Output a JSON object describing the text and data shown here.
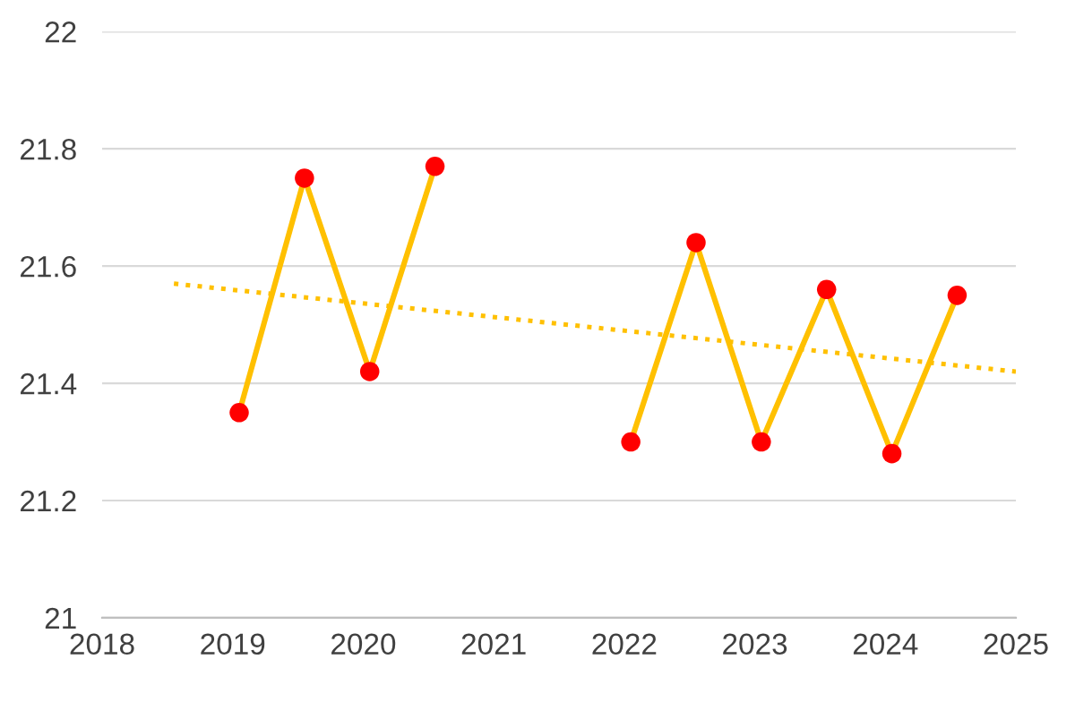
{
  "chart_data": {
    "type": "line",
    "x": [
      2019.05,
      2019.55,
      2020.05,
      2020.55,
      2021.3,
      2022.05,
      2022.55,
      2023.05,
      2023.55,
      2024.05,
      2024.55
    ],
    "series": [
      {
        "color": "#ffc000",
        "marker": "none",
        "line_style": "solid",
        "values": [
          21.35,
          21.75,
          21.42,
          21.77,
          null,
          21.3,
          21.64,
          21.3,
          21.56,
          21.28,
          21.55
        ]
      },
      {
        "type": "scatter",
        "color": "#ff0000",
        "marker": "circle",
        "values": [
          21.35,
          21.75,
          21.42,
          21.77,
          null,
          21.3,
          21.64,
          21.3,
          21.56,
          21.28,
          21.55
        ]
      },
      {
        "color": "#ffc000",
        "marker": "none",
        "line_style": "dotted",
        "x": [
          2018.55,
          2025
        ],
        "values": [
          21.57,
          21.42
        ]
      }
    ],
    "xlim": [
      2018,
      2025
    ],
    "xticks": [
      2018,
      2019,
      2020,
      2021,
      2022,
      2023,
      2024,
      2025
    ],
    "ylim": [
      21,
      22
    ],
    "yticks": [
      21,
      21.2,
      21.4,
      21.6,
      21.8,
      22
    ],
    "grid": "y",
    "legend": false
  }
}
